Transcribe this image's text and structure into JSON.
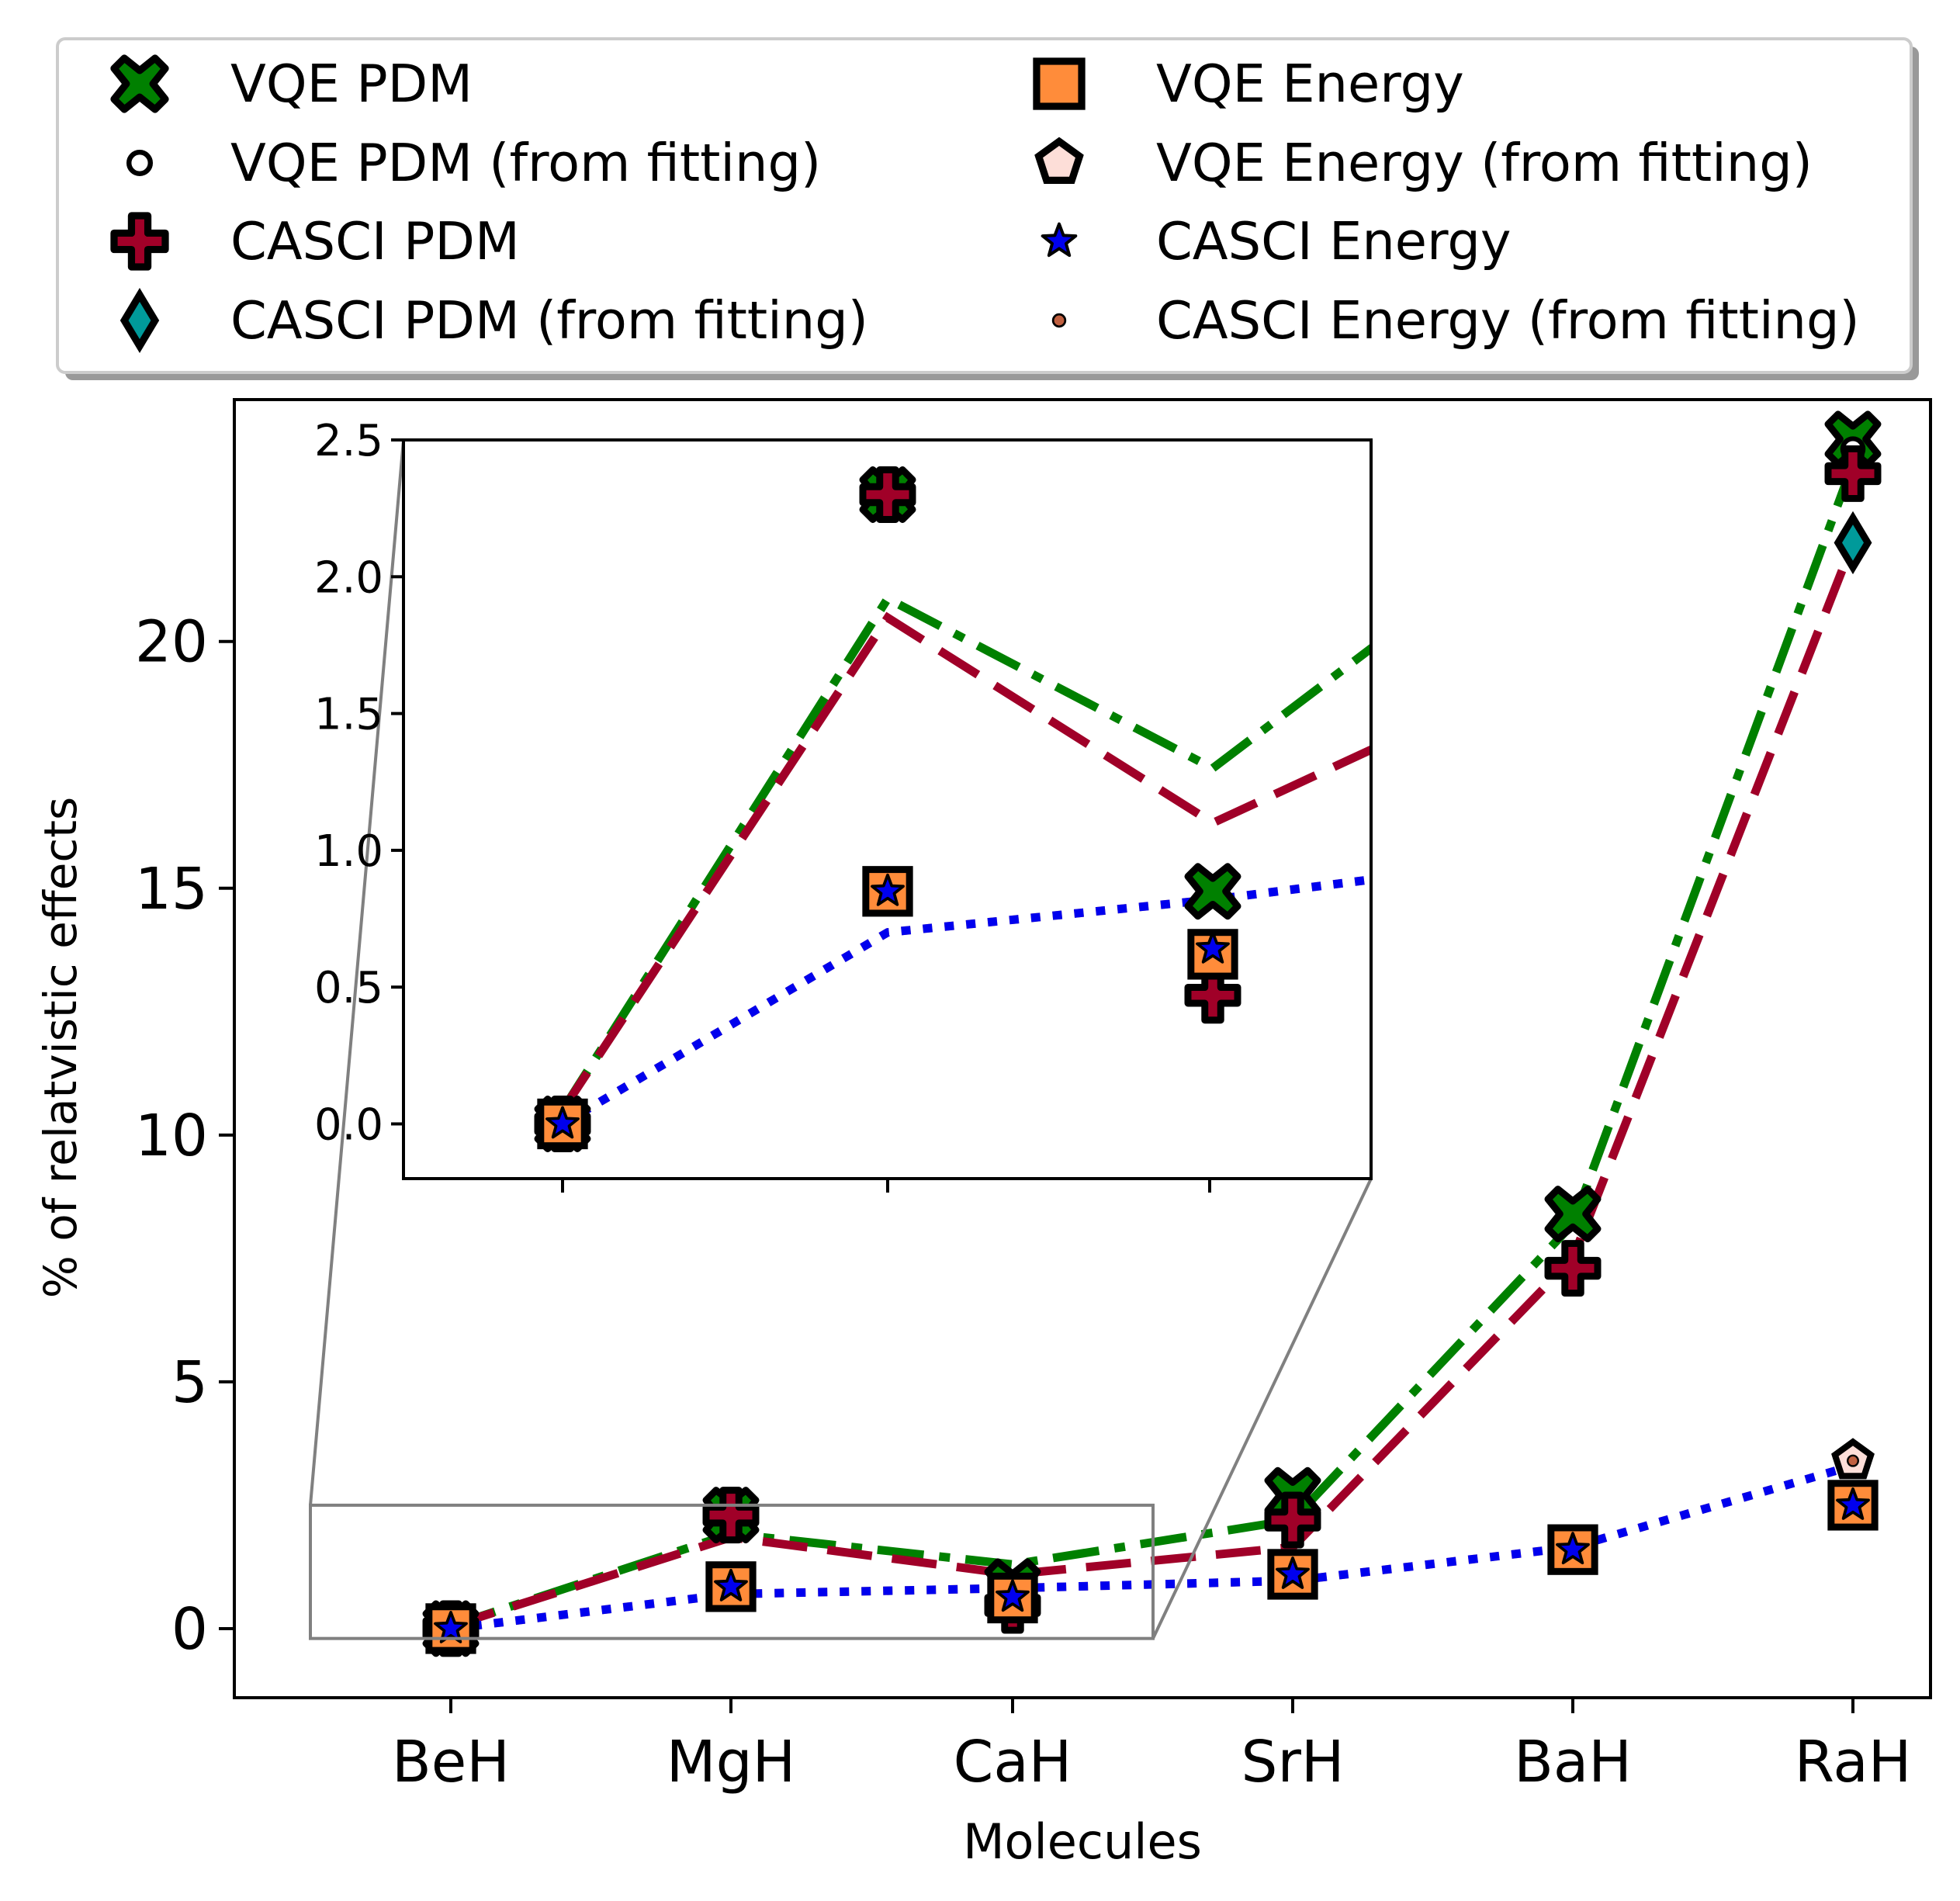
{
  "chart_data": {
    "type": "line",
    "title": "",
    "xlabel": "Molecules",
    "ylabel": "% of relatvistic effects",
    "categories": [
      "BeH",
      "MgH",
      "CaH",
      "SrH",
      "BaH",
      "RaH"
    ],
    "ylim": [
      -1.4,
      24.9
    ],
    "yticks": [
      0,
      5,
      10,
      15,
      20
    ],
    "ytick_labels": [
      "0",
      "5",
      "10",
      "15",
      "20"
    ],
    "grid": false,
    "legend_position": "above plot, two columns",
    "colors": {
      "green": "#008000",
      "crimson": "#a00028",
      "orange": "#ff8c3a",
      "blue": "#0000ee",
      "teal": "#009a9a",
      "pentagon": "#fdded8",
      "dot": "#c06040"
    },
    "lines": [
      {
        "name": "VQE PDM fit",
        "style": "dashdot",
        "color": "#008000",
        "values": [
          0.05,
          1.92,
          1.3,
          2.2,
          8.2,
          23.6
        ]
      },
      {
        "name": "CASCI PDM fit",
        "style": "dashed",
        "color": "#a00028",
        "values": [
          0.05,
          1.85,
          1.1,
          1.65,
          7.5,
          22.0
        ]
      },
      {
        "name": "VQE Energy fit",
        "style": "dotted",
        "color": "#ff8c3a",
        "values": [
          0.0,
          0.7,
          0.82,
          0.97,
          1.65,
          3.3
        ]
      },
      {
        "name": "CASCI Energy fit",
        "style": "dotted",
        "color": "#0000ee",
        "values": [
          0.0,
          0.7,
          0.82,
          0.97,
          1.65,
          3.3
        ]
      }
    ],
    "series": [
      {
        "name": "VQE PDM",
        "marker": "X",
        "color": "#008000",
        "values": [
          0.0,
          2.3,
          0.85,
          2.7,
          8.4,
          24.1
        ]
      },
      {
        "name": "VQE PDM (from fitting)",
        "marker": "circle",
        "color": "#ffffff",
        "values": [
          null,
          null,
          null,
          null,
          null,
          23.9
        ]
      },
      {
        "name": "CASCI PDM",
        "marker": "plus",
        "color": "#a00028",
        "values": [
          0.0,
          2.3,
          0.47,
          2.2,
          7.3,
          23.4
        ]
      },
      {
        "name": "CASCI PDM (from fitting)",
        "marker": "diamond",
        "color": "#009a9a",
        "values": [
          null,
          null,
          null,
          null,
          null,
          22.0
        ]
      },
      {
        "name": "VQE Energy",
        "marker": "square",
        "color": "#ff8c3a",
        "values": [
          0.0,
          0.85,
          0.62,
          1.1,
          1.6,
          2.5
        ]
      },
      {
        "name": "VQE Energy (from fitting)",
        "marker": "pentagon",
        "color": "#fdded8",
        "values": [
          null,
          null,
          null,
          null,
          null,
          3.4
        ]
      },
      {
        "name": "CASCI Energy",
        "marker": "star",
        "color": "#0000ee",
        "values": [
          0.0,
          0.85,
          0.64,
          1.1,
          1.6,
          2.5
        ]
      },
      {
        "name": "CASCI Energy (from fitting)",
        "marker": "dot",
        "color": "#c06040",
        "values": [
          null,
          null,
          null,
          null,
          null,
          3.4
        ]
      }
    ],
    "inset": {
      "xlim_categories": [
        "BeH",
        "MgH",
        "CaH"
      ],
      "ylim": [
        -0.2,
        2.5
      ],
      "yticks": [
        0.0,
        0.5,
        1.0,
        1.5,
        2.0,
        2.5
      ],
      "ytick_labels": [
        "0.0",
        "0.5",
        "1.0",
        "1.5",
        "2.0",
        "2.5"
      ],
      "zoom_region": {
        "x_range": [
          "BeH",
          "CaH"
        ],
        "y_range": [
          -0.2,
          2.5
        ]
      }
    }
  },
  "legend": {
    "items": [
      {
        "label": "VQE PDM",
        "marker": "X",
        "color": "#008000"
      },
      {
        "label": "VQE PDM (from fitting)",
        "marker": "circle",
        "color": "#ffffff"
      },
      {
        "label": "CASCI PDM",
        "marker": "plus",
        "color": "#a00028"
      },
      {
        "label": "CASCI PDM (from fitting)",
        "marker": "diamond",
        "color": "#009a9a"
      },
      {
        "label": "VQE Energy",
        "marker": "square",
        "color": "#ff8c3a"
      },
      {
        "label": "VQE Energy (from fitting)",
        "marker": "pentagon",
        "color": "#fdded8"
      },
      {
        "label": "CASCI Energy",
        "marker": "star",
        "color": "#0000ee"
      },
      {
        "label": "CASCI Energy (from fitting)",
        "marker": "dot",
        "color": "#c06040"
      }
    ]
  }
}
